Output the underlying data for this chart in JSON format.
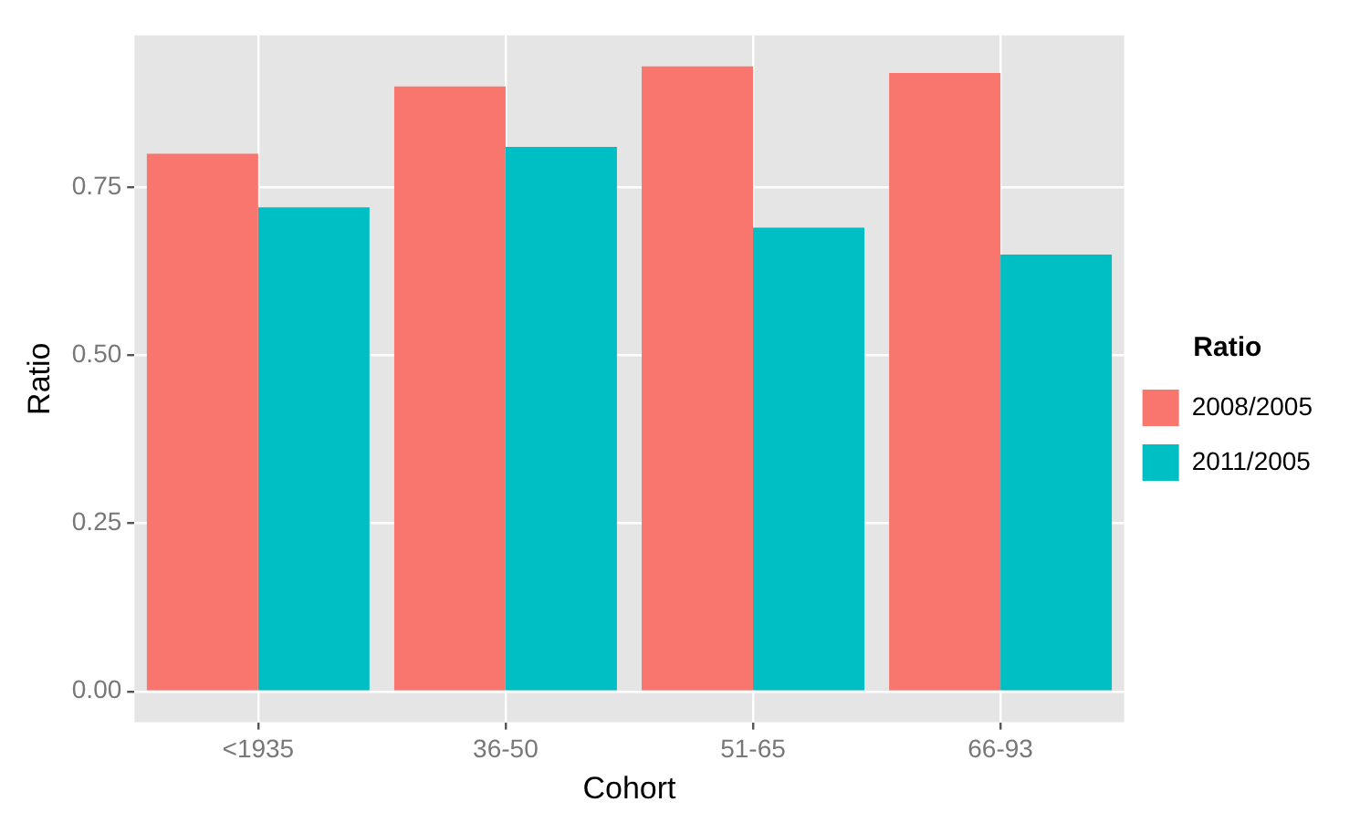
{
  "chart_data": {
    "type": "bar",
    "xlabel": "Cohort",
    "ylabel": "Ratio",
    "legend_title": "Ratio",
    "categories": [
      "<1935",
      "36-50",
      "51-65",
      "66-93"
    ],
    "series": [
      {
        "name": "2008/2005",
        "color": "#f8766d",
        "values": [
          0.8,
          0.9,
          0.93,
          0.92
        ]
      },
      {
        "name": "2011/2005",
        "color": "#00bfc4",
        "values": [
          0.72,
          0.81,
          0.69,
          0.65
        ]
      }
    ],
    "ylim": [
      -0.046,
      0.976
    ],
    "yticks": [
      {
        "value": 0,
        "label": "0.00"
      },
      {
        "value": 0.25,
        "label": "0.25"
      },
      {
        "value": 0.5,
        "label": "0.50"
      },
      {
        "value": 0.75,
        "label": "0.75"
      }
    ],
    "grid": true,
    "legend": "right"
  }
}
